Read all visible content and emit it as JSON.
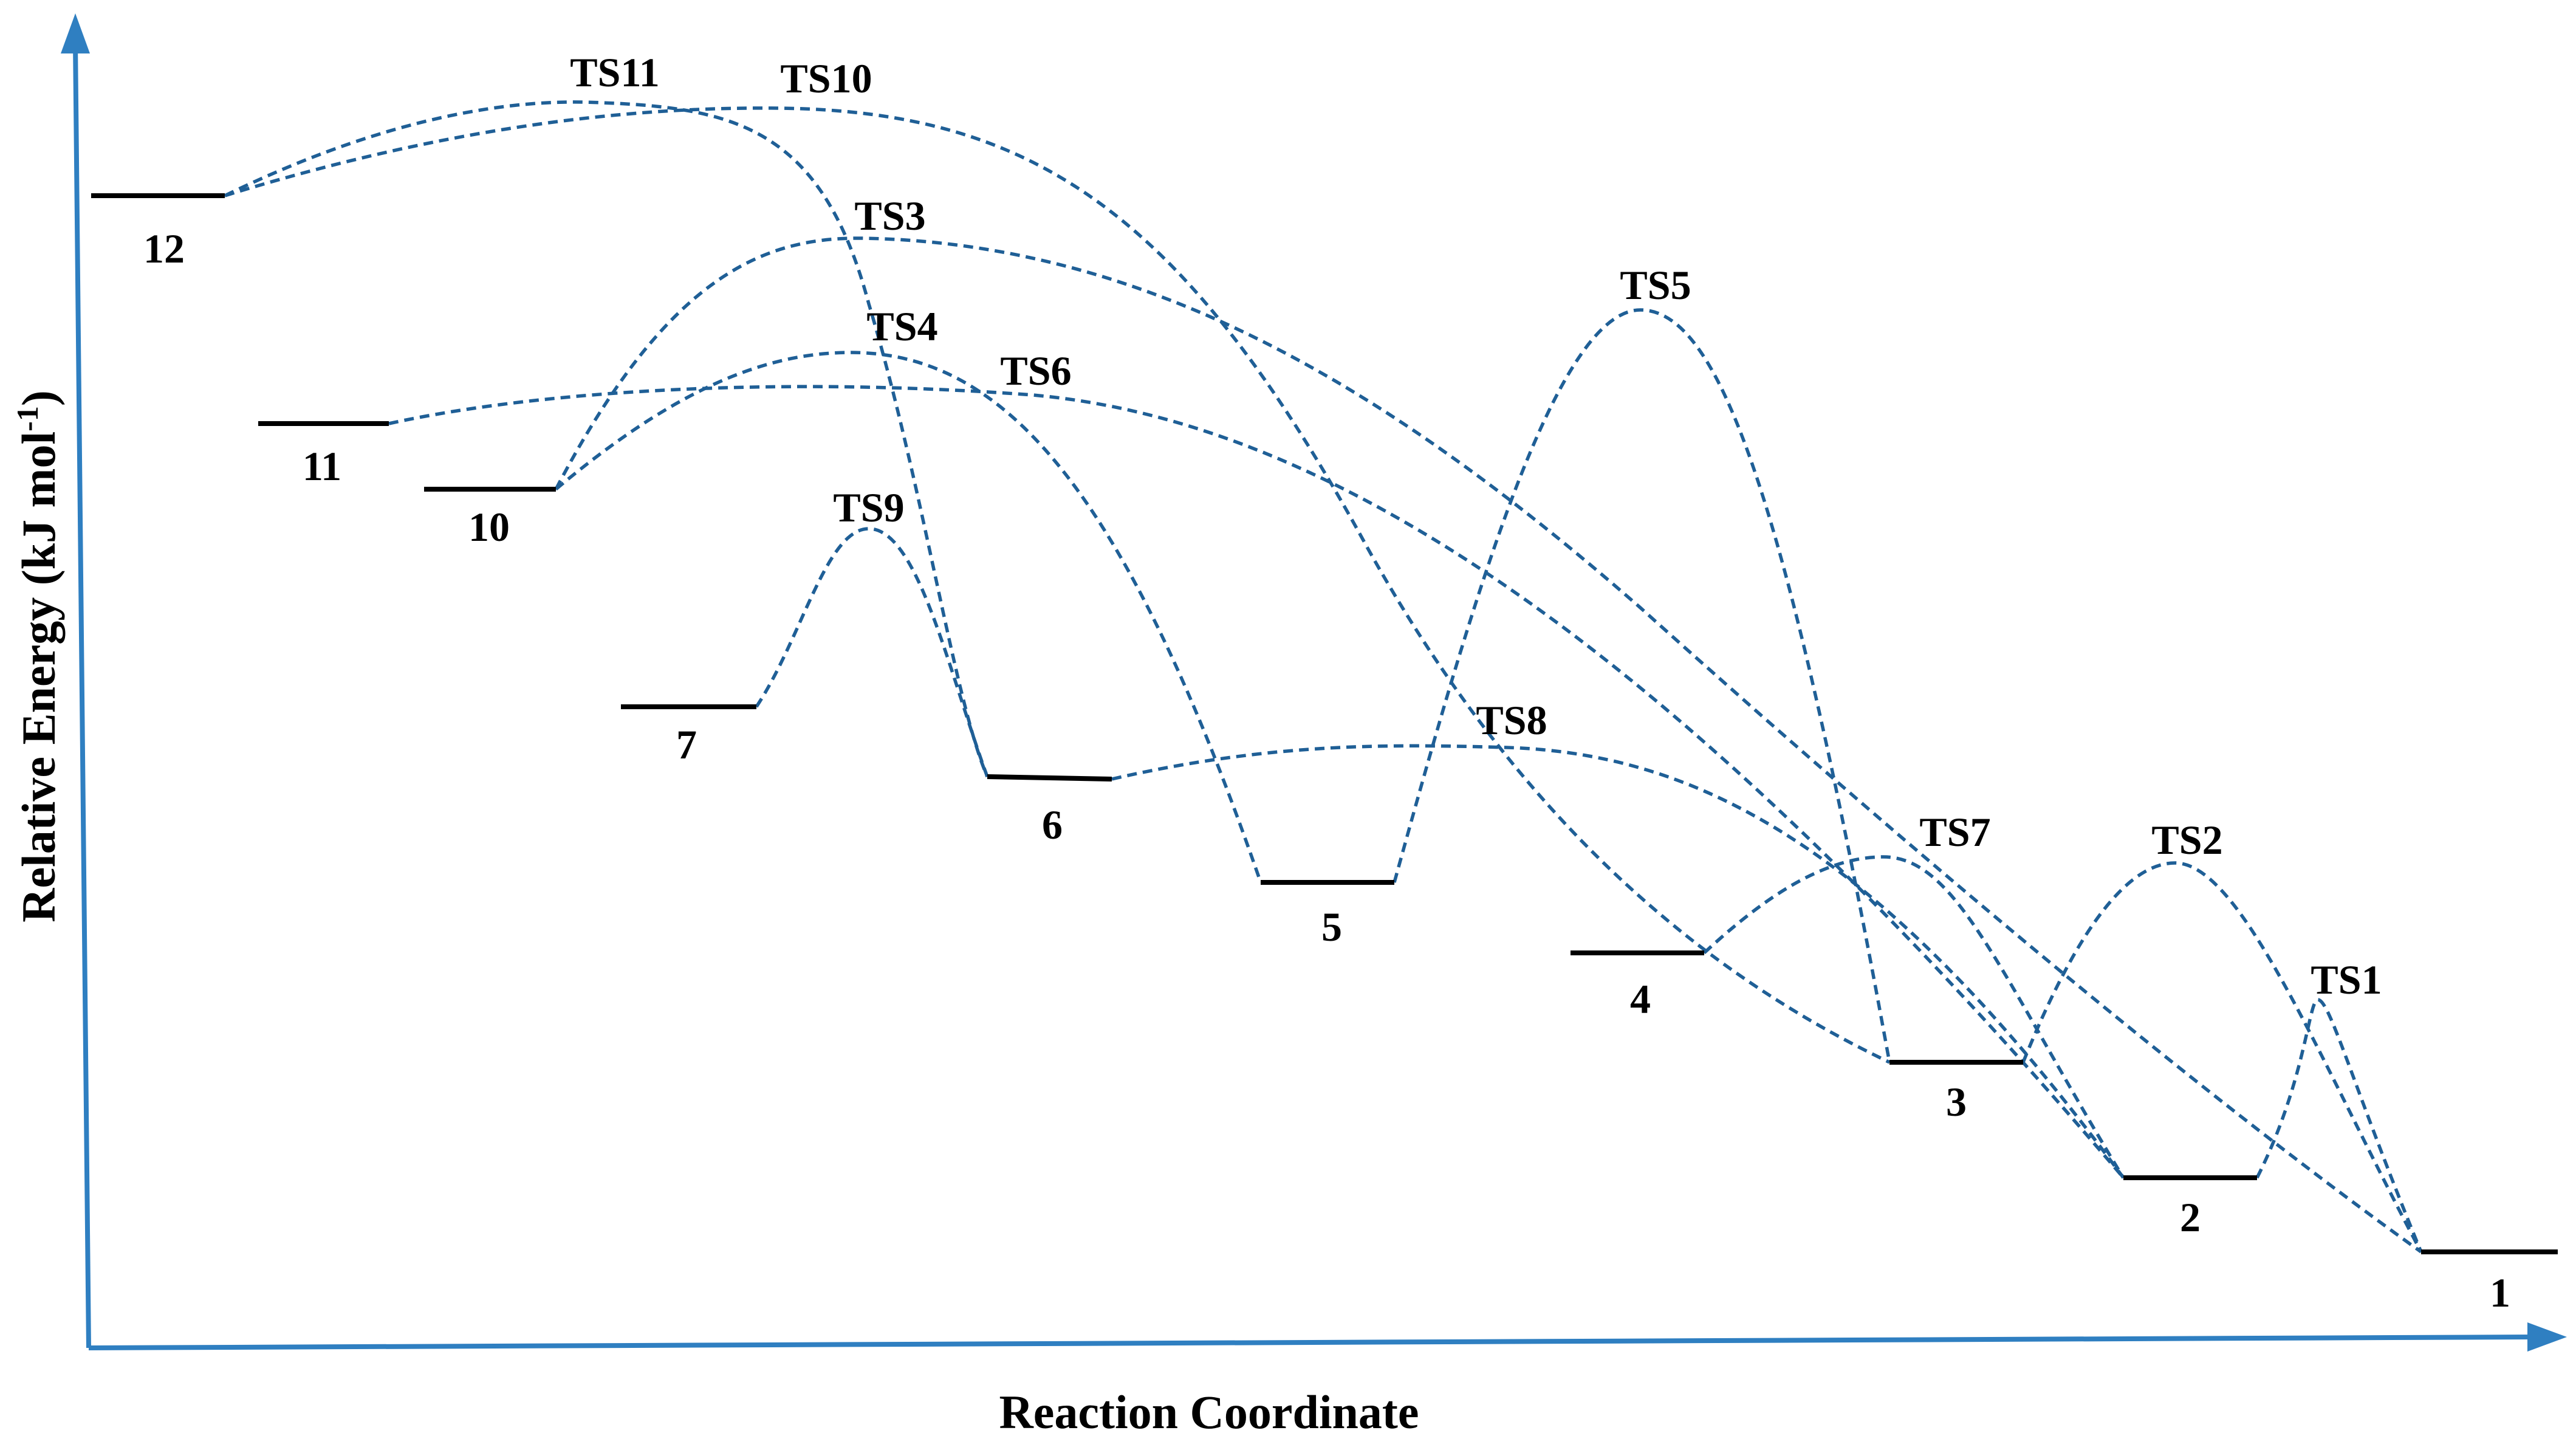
{
  "axes": {
    "x_title": "Reaction Coordinate",
    "y_title_main": "Relative Energy  (kJ mol",
    "y_title_sup": "-1",
    "y_title_end": ")"
  },
  "minima": [
    {
      "id": "m12",
      "label": "12"
    },
    {
      "id": "m11",
      "label": "11"
    },
    {
      "id": "m10",
      "label": "10"
    },
    {
      "id": "m7",
      "label": "7"
    },
    {
      "id": "m6",
      "label": "6"
    },
    {
      "id": "m5",
      "label": "5"
    },
    {
      "id": "m4",
      "label": "4"
    },
    {
      "id": "m3",
      "label": "3"
    },
    {
      "id": "m2",
      "label": "2"
    },
    {
      "id": "m1",
      "label": "1"
    }
  ],
  "transition_states": [
    {
      "id": "ts1",
      "label": "TS1",
      "connects": [
        "2",
        "1"
      ]
    },
    {
      "id": "ts2",
      "label": "TS2",
      "connects": [
        "3",
        "1"
      ]
    },
    {
      "id": "ts3",
      "label": "TS3",
      "connects": [
        "10",
        "1"
      ]
    },
    {
      "id": "ts4",
      "label": "TS4",
      "connects": [
        "10",
        "5"
      ]
    },
    {
      "id": "ts5",
      "label": "TS5",
      "connects": [
        "5",
        "3"
      ]
    },
    {
      "id": "ts6",
      "label": "TS6",
      "connects": [
        "11",
        "2"
      ]
    },
    {
      "id": "ts7",
      "label": "TS7",
      "connects": [
        "4",
        "2"
      ]
    },
    {
      "id": "ts8",
      "label": "TS8",
      "connects": [
        "6",
        "2"
      ]
    },
    {
      "id": "ts9",
      "label": "TS9",
      "connects": [
        "7",
        "6"
      ]
    },
    {
      "id": "ts10",
      "label": "TS10",
      "connects": [
        "12",
        "3"
      ]
    },
    {
      "id": "ts11",
      "label": "TS11",
      "connects": [
        "12",
        "6"
      ]
    }
  ],
  "colors": {
    "axis": "#2f7fc1",
    "path": "#1f5f96",
    "level": "#000000"
  }
}
